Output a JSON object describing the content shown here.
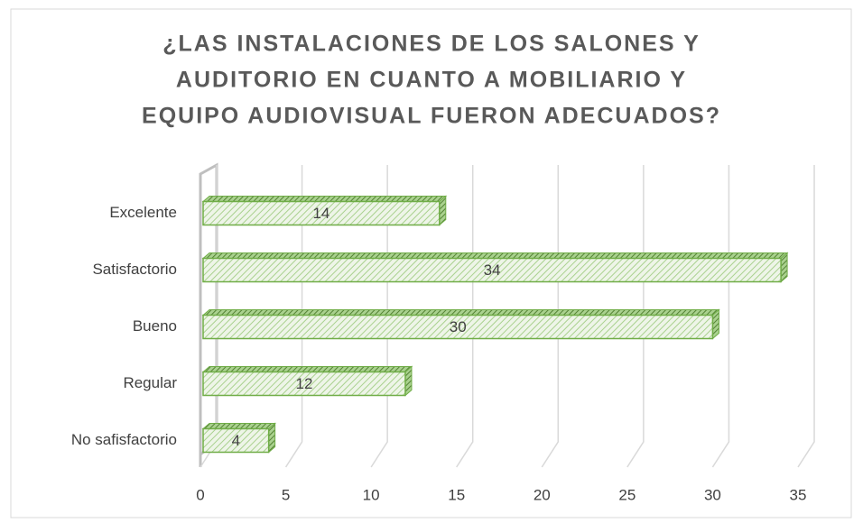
{
  "chart_data": {
    "type": "bar",
    "orientation": "horizontal",
    "title": [
      "¿LAS INSTALACIONES DE LOS SALONES Y",
      "AUDITORIO EN CUANTO A MOBILIARIO Y",
      "EQUIPO AUDIOVISUAL FUERON ADECUADOS?"
    ],
    "categories": [
      "Excelente",
      "Satisfactorio",
      "Bueno",
      "Regular",
      "No safisfactorio"
    ],
    "values": [
      14,
      34,
      30,
      12,
      4
    ],
    "color": "#70ad47",
    "xlim": [
      0,
      35
    ],
    "xticks": [
      0,
      5,
      10,
      15,
      20,
      25,
      30,
      35
    ],
    "grid": true
  }
}
